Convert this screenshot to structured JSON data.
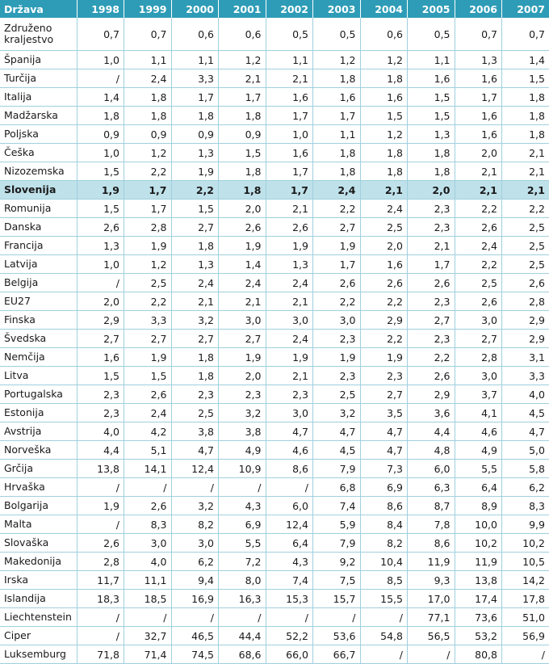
{
  "header": {
    "country_label": "Država",
    "years": [
      "1998",
      "1999",
      "2000",
      "2001",
      "2002",
      "2003",
      "2004",
      "2005",
      "2006",
      "2007"
    ]
  },
  "rows": [
    {
      "country": "Združeno kraljestvo",
      "values": [
        "0,7",
        "0,7",
        "0,6",
        "0,6",
        "0,5",
        "0,5",
        "0,6",
        "0,5",
        "0,7",
        "0,7"
      ]
    },
    {
      "country": "Španija",
      "values": [
        "1,0",
        "1,1",
        "1,1",
        "1,2",
        "1,1",
        "1,2",
        "1,2",
        "1,1",
        "1,3",
        "1,4"
      ]
    },
    {
      "country": "Turčija",
      "values": [
        "/",
        "2,4",
        "3,3",
        "2,1",
        "2,1",
        "1,8",
        "1,8",
        "1,6",
        "1,6",
        "1,5"
      ]
    },
    {
      "country": "Italija",
      "values": [
        "1,4",
        "1,8",
        "1,7",
        "1,7",
        "1,6",
        "1,6",
        "1,6",
        "1,5",
        "1,7",
        "1,8"
      ]
    },
    {
      "country": "Madžarska",
      "values": [
        "1,8",
        "1,8",
        "1,8",
        "1,8",
        "1,7",
        "1,7",
        "1,5",
        "1,5",
        "1,6",
        "1,8"
      ]
    },
    {
      "country": "Poljska",
      "values": [
        "0,9",
        "0,9",
        "0,9",
        "0,9",
        "1,0",
        "1,1",
        "1,2",
        "1,3",
        "1,6",
        "1,8"
      ]
    },
    {
      "country": "Češka",
      "values": [
        "1,0",
        "1,2",
        "1,3",
        "1,5",
        "1,6",
        "1,8",
        "1,8",
        "1,8",
        "2,0",
        "2,1"
      ]
    },
    {
      "country": "Nizozemska",
      "values": [
        "1,5",
        "2,2",
        "1,9",
        "1,8",
        "1,7",
        "1,8",
        "1,8",
        "1,8",
        "2,1",
        "2,1"
      ]
    },
    {
      "country": "Slovenija",
      "values": [
        "1,9",
        "1,7",
        "2,2",
        "1,8",
        "1,7",
        "2,4",
        "2,1",
        "2,0",
        "2,1",
        "2,1"
      ]
    },
    {
      "country": "Romunija",
      "values": [
        "1,5",
        "1,7",
        "1,5",
        "2,0",
        "2,1",
        "2,2",
        "2,4",
        "2,3",
        "2,2",
        "2,2"
      ]
    },
    {
      "country": "Danska",
      "values": [
        "2,6",
        "2,8",
        "2,7",
        "2,6",
        "2,6",
        "2,7",
        "2,5",
        "2,3",
        "2,6",
        "2,5"
      ]
    },
    {
      "country": "Francija",
      "values": [
        "1,3",
        "1,9",
        "1,8",
        "1,9",
        "1,9",
        "1,9",
        "2,0",
        "2,1",
        "2,4",
        "2,5"
      ]
    },
    {
      "country": "Latvija",
      "values": [
        "1,0",
        "1,2",
        "1,3",
        "1,4",
        "1,3",
        "1,7",
        "1,6",
        "1,7",
        "2,2",
        "2,5"
      ]
    },
    {
      "country": "Belgija",
      "values": [
        "/",
        "2,5",
        "2,4",
        "2,4",
        "2,4",
        "2,6",
        "2,6",
        "2,6",
        "2,5",
        "2,6"
      ]
    },
    {
      "country": "EU27",
      "values": [
        "2,0",
        "2,2",
        "2,1",
        "2,1",
        "2,1",
        "2,2",
        "2,2",
        "2,3",
        "2,6",
        "2,8"
      ]
    },
    {
      "country": "Finska",
      "values": [
        "2,9",
        "3,3",
        "3,2",
        "3,0",
        "3,0",
        "3,0",
        "2,9",
        "2,7",
        "3,0",
        "2,9"
      ]
    },
    {
      "country": "Švedska",
      "values": [
        "2,7",
        "2,7",
        "2,7",
        "2,7",
        "2,4",
        "2,3",
        "2,2",
        "2,3",
        "2,7",
        "2,9"
      ]
    },
    {
      "country": "Nemčija",
      "values": [
        "1,6",
        "1,9",
        "1,8",
        "1,9",
        "1,9",
        "1,9",
        "1,9",
        "2,2",
        "2,8",
        "3,1"
      ]
    },
    {
      "country": "Litva",
      "values": [
        "1,5",
        "1,5",
        "1,8",
        "2,0",
        "2,1",
        "2,3",
        "2,3",
        "2,6",
        "3,0",
        "3,3"
      ]
    },
    {
      "country": "Portugalska",
      "values": [
        "2,3",
        "2,6",
        "2,3",
        "2,3",
        "2,3",
        "2,5",
        "2,7",
        "2,9",
        "3,7",
        "4,0"
      ]
    },
    {
      "country": "Estonija",
      "values": [
        "2,3",
        "2,4",
        "2,5",
        "3,2",
        "3,0",
        "3,2",
        "3,5",
        "3,6",
        "4,1",
        "4,5"
      ]
    },
    {
      "country": "Avstrija",
      "values": [
        "4,0",
        "4,2",
        "3,8",
        "3,8",
        "4,7",
        "4,7",
        "4,7",
        "4,4",
        "4,6",
        "4,7"
      ]
    },
    {
      "country": "Norveška",
      "values": [
        "4,4",
        "5,1",
        "4,7",
        "4,9",
        "4,6",
        "4,5",
        "4,7",
        "4,8",
        "4,9",
        "5,0"
      ]
    },
    {
      "country": "Grčija",
      "values": [
        "13,8",
        "14,1",
        "12,4",
        "10,9",
        "8,6",
        "7,9",
        "7,3",
        "6,0",
        "5,5",
        "5,8"
      ]
    },
    {
      "country": "Hrvaška",
      "values": [
        "/",
        "/",
        "/",
        "/",
        "/",
        "6,8",
        "6,9",
        "6,3",
        "6,4",
        "6,2"
      ]
    },
    {
      "country": "Bolgarija",
      "values": [
        "1,9",
        "2,6",
        "3,2",
        "4,3",
        "6,0",
        "7,4",
        "8,6",
        "8,7",
        "8,9",
        "8,3"
      ]
    },
    {
      "country": "Malta",
      "values": [
        "/",
        "8,3",
        "8,2",
        "6,9",
        "12,4",
        "5,9",
        "8,4",
        "7,8",
        "10,0",
        "9,9"
      ]
    },
    {
      "country": "Slovaška",
      "values": [
        "2,6",
        "3,0",
        "3,0",
        "5,5",
        "6,4",
        "7,9",
        "8,2",
        "8,6",
        "10,2",
        "10,2"
      ]
    },
    {
      "country": "Makedonija",
      "values": [
        "2,8",
        "4,0",
        "6,2",
        "7,2",
        "4,3",
        "9,2",
        "10,4",
        "11,9",
        "11,9",
        "10,5"
      ]
    },
    {
      "country": "Irska",
      "values": [
        "11,7",
        "11,1",
        "9,4",
        "8,0",
        "7,4",
        "7,5",
        "8,5",
        "9,3",
        "13,8",
        "14,2"
      ]
    },
    {
      "country": "Islandija",
      "values": [
        "18,3",
        "18,5",
        "16,9",
        "16,3",
        "15,3",
        "15,7",
        "15,5",
        "17,0",
        "17,4",
        "17,8"
      ]
    },
    {
      "country": "Liechtenstein",
      "values": [
        "/",
        "/",
        "/",
        "/",
        "/",
        "/",
        "/",
        "77,1",
        "73,6",
        "51,0"
      ]
    },
    {
      "country": "Ciper",
      "values": [
        "/",
        "32,7",
        "46,5",
        "44,4",
        "52,2",
        "53,6",
        "54,8",
        "56,5",
        "53,2",
        "56,9"
      ]
    },
    {
      "country": "Luksemburg",
      "values": [
        "71,8",
        "71,4",
        "74,5",
        "68,6",
        "66,0",
        "66,7",
        "/",
        "/",
        "80,8",
        "/"
      ]
    }
  ]
}
